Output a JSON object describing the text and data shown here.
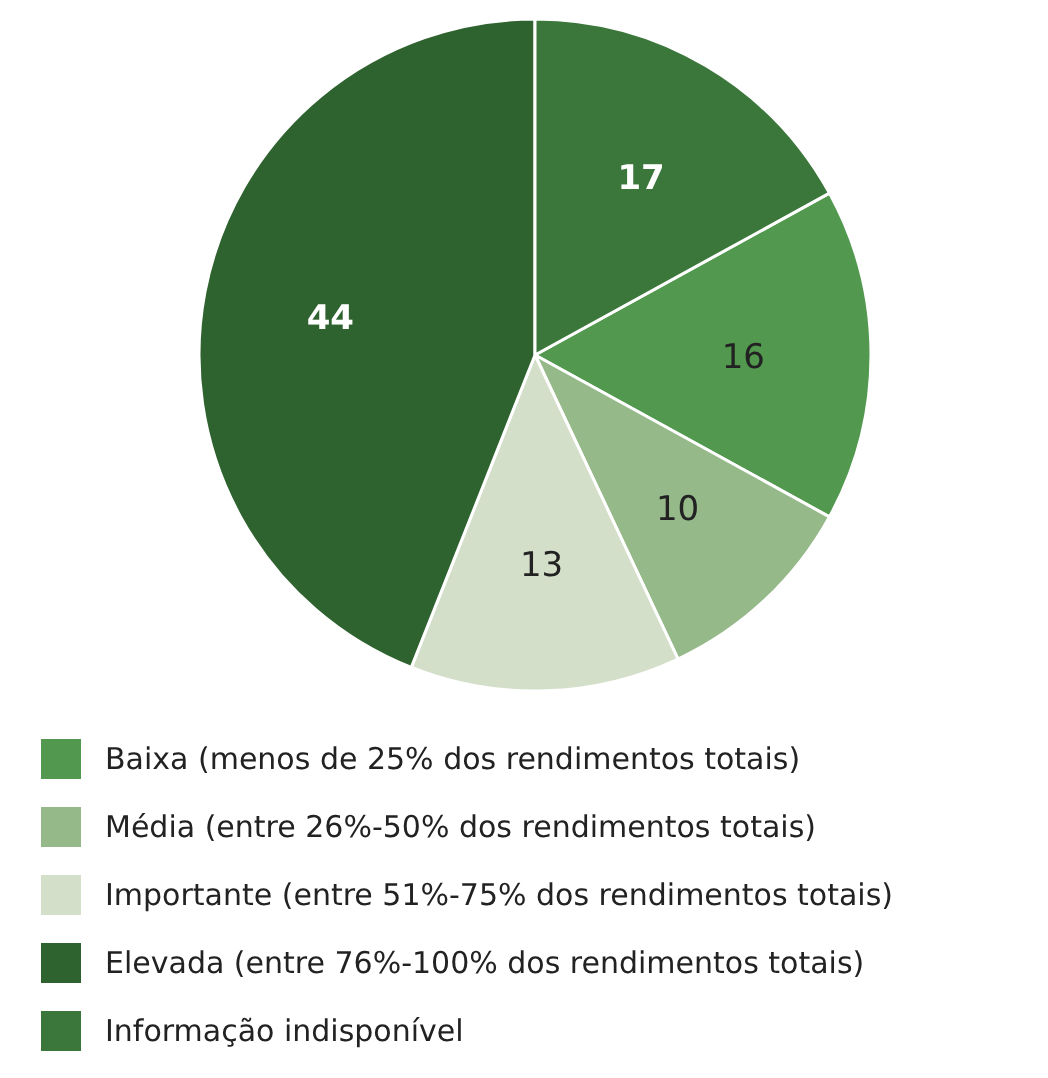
{
  "chart_data": {
    "type": "pie",
    "categories": [
      "Baixa (menos de 25% dos rendimentos totais)",
      "Média (entre 26%-50% dos rendimentos totais)",
      "Importante (entre 51%-75% dos rendimentos totais)",
      "Elevada (entre 76%-100% dos rendimentos totais)",
      "Informação indisponível"
    ],
    "values": [
      16,
      10,
      13,
      44,
      17
    ],
    "colors": [
      "#52994f",
      "#96b98a",
      "#d4dfca",
      "#2e622e",
      "#3b773b"
    ],
    "data_labels": true,
    "legend": "bottom"
  }
}
